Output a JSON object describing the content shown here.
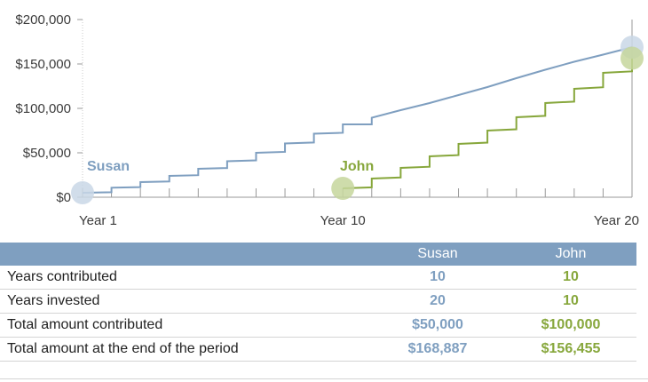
{
  "chart_data": {
    "type": "line",
    "y_ticks": [
      "$200,000",
      "$150,000",
      "$100,000",
      "$50,000",
      "$0"
    ],
    "y_tick_values": [
      200000,
      150000,
      100000,
      50000,
      0
    ],
    "x_ticks": [
      "Year 1",
      "Year 10",
      "Year 20"
    ],
    "x_tick_values": [
      1,
      10,
      20
    ],
    "xlim": [
      1,
      20
    ],
    "ylim": [
      0,
      200000
    ],
    "grid": false,
    "series": [
      {
        "name": "Susan",
        "color": "#7f9fc0",
        "x": [
          1,
          2,
          3,
          4,
          5,
          6,
          7,
          8,
          9,
          10,
          11,
          12,
          13,
          14,
          15,
          16,
          17,
          18,
          19,
          20
        ],
        "y": [
          5000,
          10700,
          17000,
          24000,
          32000,
          40500,
          50000,
          60500,
          71500,
          82000,
          89500,
          98000,
          106000,
          115000,
          124000,
          134000,
          143500,
          152500,
          160500,
          168887
        ]
      },
      {
        "name": "John",
        "color": "#87a73c",
        "x": [
          10,
          11,
          12,
          13,
          14,
          15,
          16,
          17,
          18,
          19,
          20
        ],
        "y": [
          10000,
          21000,
          33000,
          46000,
          60000,
          75000,
          90000,
          106000,
          122000,
          140000,
          156455
        ]
      }
    ]
  },
  "table": {
    "header": {
      "blank": "",
      "susan": "Susan",
      "john": "John"
    },
    "rows": [
      {
        "label": "Years contributed",
        "susan": "10",
        "john": "10"
      },
      {
        "label": "Years invested",
        "susan": "20",
        "john": "10"
      },
      {
        "label": "Total amount contributed",
        "susan": "$50,000",
        "john": "$100,000"
      },
      {
        "label": "Total amount at the end of the period",
        "susan": "$168,887",
        "john": "$156,455"
      }
    ]
  }
}
